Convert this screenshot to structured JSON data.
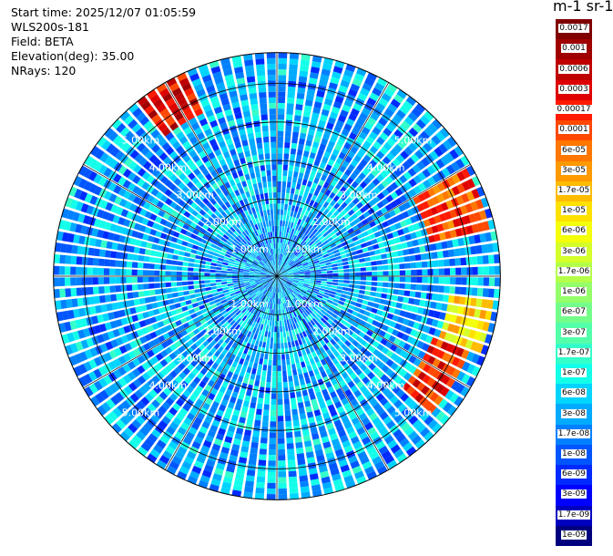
{
  "info": {
    "start_time": "Start time: 2025/12/07 01:05:59",
    "instrument": "WLS200s-181",
    "field": "Field: BETA",
    "elevation": "Elevation(deg): 35.00",
    "nrays": "NRays: 120"
  },
  "colorbar": {
    "unit": "m-1 sr-1",
    "labels": [
      "0.0017",
      "0.001",
      "0.0006",
      "0.0003",
      "0.00017",
      "0.0001",
      "6e-05",
      "3e-05",
      "1.7e-05",
      "1e-05",
      "6e-06",
      "3e-06",
      "1.7e-06",
      "1e-06",
      "6e-07",
      "3e-07",
      "1.7e-07",
      "1e-07",
      "6e-08",
      "3e-08",
      "1.7e-08",
      "1e-08",
      "6e-09",
      "3e-09",
      "1.7e-09",
      "1e-09"
    ],
    "colors": [
      "#800000",
      "#9f0000",
      "#bf0000",
      "#df0000",
      "#ff1a00",
      "#ff4800",
      "#ff7700",
      "#ff9900",
      "#ffbb00",
      "#ffe100",
      "#f4ff0a",
      "#d4ff2a",
      "#b4ff4a",
      "#94ff6a",
      "#74ff8a",
      "#54ffaa",
      "#34ffca",
      "#14ffea",
      "#00d4ff",
      "#00aaff",
      "#0080ff",
      "#0055ff",
      "#002aff",
      "#0000ff",
      "#0000bf",
      "#00007f"
    ]
  },
  "range_labels": [
    "1.00km",
    "2.00km",
    "3.00km",
    "4.00km",
    "5.00km"
  ],
  "chart_data": {
    "type": "heatmap",
    "projection": "polar (PPI scan)",
    "field": "BETA",
    "units": "m-1 sr-1",
    "scale": "log",
    "range_rings_km": [
      1,
      2,
      3,
      4,
      5
    ],
    "max_range_km": 5.8,
    "n_rays": 120,
    "elevation_deg": 35.0,
    "color_range": [
      1e-09,
      0.0017
    ],
    "typical_value": 3e-08,
    "enhanced_regions": [
      {
        "azimuth_deg": [
          320,
          335
        ],
        "range_km": [
          4.6,
          5.8
        ],
        "value": 0.0003
      },
      {
        "azimuth_deg": [
          60,
          78
        ],
        "range_km": [
          4.0,
          5.6
        ],
        "value": 0.0001
      },
      {
        "azimuth_deg": [
          95,
          112
        ],
        "range_km": [
          4.5,
          5.6
        ],
        "value": 1e-05
      },
      {
        "azimuth_deg": [
          112,
          132
        ],
        "range_km": [
          4.3,
          5.3
        ],
        "value": 0.0002
      }
    ]
  }
}
